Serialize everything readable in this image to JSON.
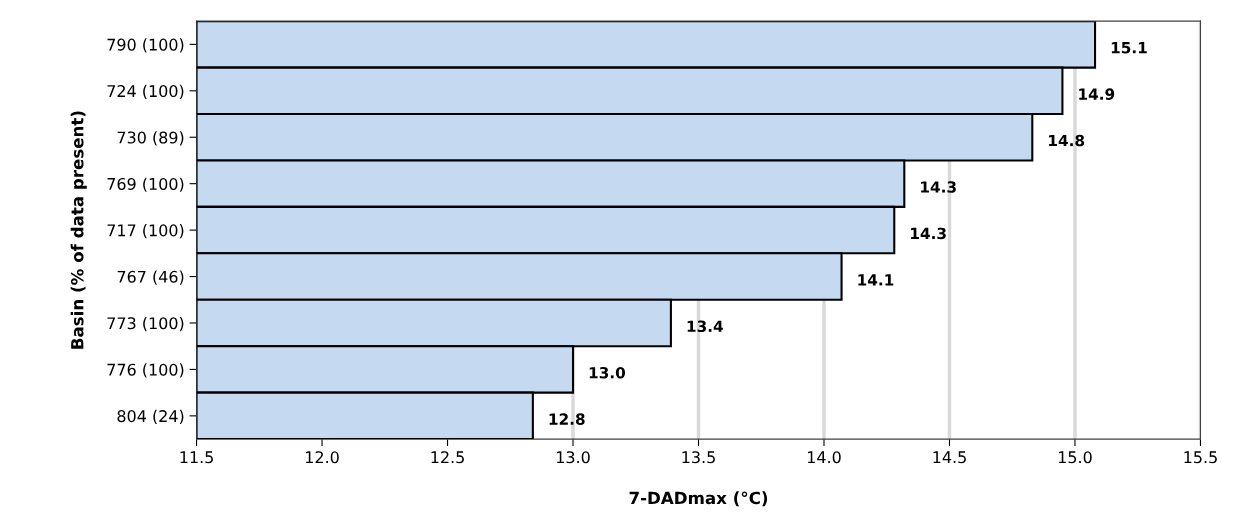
{
  "chart_data": {
    "type": "bar",
    "orientation": "horizontal",
    "categories": [
      "790 (100)",
      "724 (100)",
      "730 (89)",
      "769 (100)",
      "717 (100)",
      "767 (46)",
      "773 (100)",
      "776 (100)",
      "804 (24)"
    ],
    "values": [
      15.08,
      14.95,
      14.83,
      14.32,
      14.28,
      14.07,
      13.39,
      13.0,
      12.84
    ],
    "value_labels": [
      "15.1",
      "14.9",
      "14.8",
      "14.3",
      "14.3",
      "14.1",
      "13.4",
      "13.0",
      "12.8"
    ],
    "color": "#c5d9f1",
    "xlabel": "7-DADmax (°C)",
    "ylabel": "Basin (% of data present)",
    "xlim": [
      11.5,
      15.5
    ],
    "xticks": [
      "11.5",
      "12.0",
      "12.5",
      "13.0",
      "13.5",
      "14.0",
      "14.5",
      "15.0",
      "15.5"
    ],
    "grid": "x"
  }
}
